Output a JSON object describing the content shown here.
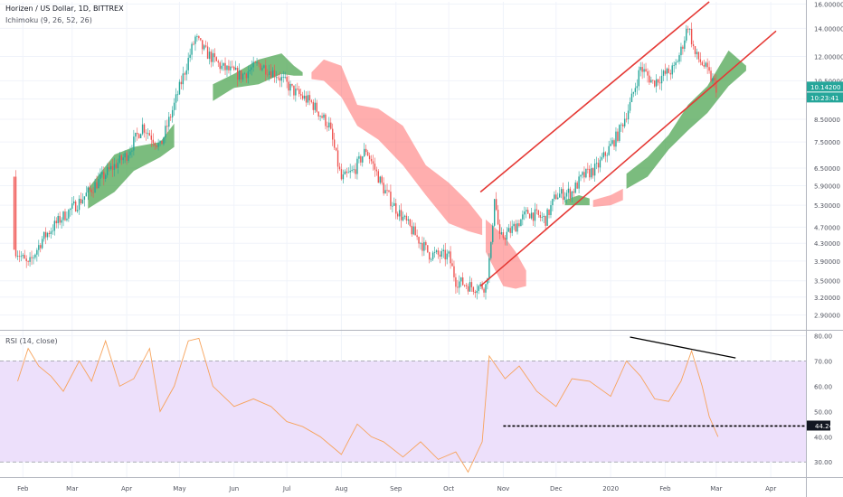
{
  "header": {
    "symbol_line": "Horizen / US Dollar, 1D, BITTREX",
    "indicator_line": "Ichimoku (9, 26, 52, 26)",
    "rsi_line": "RSI (14, close)"
  },
  "colors": {
    "candle_up": "#26a69a",
    "candle_down": "#ef5350",
    "cloud_bull": "#43a047",
    "cloud_bear": "#ff6b6b",
    "trend_channel": "#e53935",
    "rsi_line": "#f7a35c",
    "rsi_band": "#ede0fb",
    "grid": "#f0f3fa",
    "price_badge": "#26a69a",
    "rsi_badge": "#131722"
  },
  "chart_data": [
    {
      "type": "candlestick",
      "title": "Horizen / US Dollar, 1D, BITTREX",
      "y_scale": "log",
      "ylim": [
        2.7,
        16.2
      ],
      "y_ticks": [
        "16.00000",
        "14.00000",
        "12.00000",
        "10.50000",
        "9.50000",
        "8.50000",
        "7.50000",
        "6.50000",
        "5.90000",
        "5.30000",
        "4.70000",
        "4.30000",
        "3.90000",
        "3.50000",
        "3.20000",
        "2.90000"
      ],
      "current_price": "10.14200",
      "countdown": "10:23:41",
      "x_ticks": [
        "Feb",
        "Mar",
        "Apr",
        "May",
        "Jun",
        "Jul",
        "Aug",
        "Sep",
        "Oct",
        "Nov",
        "Dec",
        "2020",
        "Feb",
        "Mar",
        "Apr"
      ],
      "x_tick_dates": [
        "2019-02-01",
        "2019-03-01",
        "2019-04-01",
        "2019-05-01",
        "2019-06-01",
        "2019-07-01",
        "2019-08-01",
        "2019-09-01",
        "2019-10-01",
        "2019-11-01",
        "2019-12-01",
        "2020-01-01",
        "2020-02-01",
        "2020-03-01",
        "2020-04-01"
      ],
      "price_path": [
        [
          "2019-01-27",
          6.2
        ],
        [
          "2019-01-28",
          4.15
        ],
        [
          "2019-02-04",
          3.8
        ],
        [
          "2019-02-12",
          4.4
        ],
        [
          "2019-02-22",
          4.9
        ],
        [
          "2019-03-05",
          5.4
        ],
        [
          "2019-03-20",
          6.3
        ],
        [
          "2019-04-01",
          7.0
        ],
        [
          "2019-04-10",
          8.2
        ],
        [
          "2019-04-20",
          7.3
        ],
        [
          "2019-04-28",
          9.2
        ],
        [
          "2019-05-06",
          11.8
        ],
        [
          "2019-05-10",
          13.3
        ],
        [
          "2019-05-15",
          12.4
        ],
        [
          "2019-05-25",
          11.3
        ],
        [
          "2019-06-05",
          10.8
        ],
        [
          "2019-06-15",
          11.5
        ],
        [
          "2019-06-25",
          10.9
        ],
        [
          "2019-07-05",
          9.9
        ],
        [
          "2019-07-15",
          9.3
        ],
        [
          "2019-07-25",
          8.2
        ],
        [
          "2019-08-01",
          6.1
        ],
        [
          "2019-08-08",
          6.4
        ],
        [
          "2019-08-15",
          7.2
        ],
        [
          "2019-08-25",
          5.8
        ],
        [
          "2019-09-01",
          5.2
        ],
        [
          "2019-09-12",
          4.5
        ],
        [
          "2019-09-20",
          4.05
        ],
        [
          "2019-10-01",
          4.0
        ],
        [
          "2019-10-05",
          3.5
        ],
        [
          "2019-10-15",
          3.38
        ],
        [
          "2019-10-22",
          3.4
        ],
        [
          "2019-10-25",
          4.2
        ],
        [
          "2019-10-27",
          5.6
        ],
        [
          "2019-10-30",
          4.4
        ],
        [
          "2019-11-05",
          4.6
        ],
        [
          "2019-11-15",
          5.1
        ],
        [
          "2019-11-25",
          4.9
        ],
        [
          "2019-12-01",
          5.6
        ],
        [
          "2019-12-10",
          5.7
        ],
        [
          "2019-12-16",
          6.2
        ],
        [
          "2019-12-24",
          6.5
        ],
        [
          "2020-01-05",
          7.8
        ],
        [
          "2020-01-12",
          9.2
        ],
        [
          "2020-01-18",
          11.3
        ],
        [
          "2020-01-25",
          10.4
        ],
        [
          "2020-02-01",
          10.9
        ],
        [
          "2020-02-06",
          11.2
        ],
        [
          "2020-02-10",
          12.4
        ],
        [
          "2020-02-14",
          14.3
        ],
        [
          "2020-02-18",
          12.1
        ],
        [
          "2020-02-23",
          11.4
        ],
        [
          "2020-03-01",
          10.14
        ]
      ],
      "channel_upper": [
        [
          "2019-10-19",
          5.7
        ],
        [
          "2020-02-26",
          16.2
        ]
      ],
      "channel_lower": [
        [
          "2019-10-19",
          3.4
        ],
        [
          "2020-04-04",
          13.8
        ]
      ],
      "cloud_segments": [
        {
          "kind": "bull",
          "dates": [
            "2019-03-10",
            "2019-03-25",
            "2019-04-05",
            "2019-04-20",
            "2019-04-28"
          ],
          "upper": [
            5.8,
            7.0,
            7.3,
            7.5,
            8.3
          ],
          "lower": [
            5.2,
            5.7,
            6.4,
            6.9,
            7.3
          ]
        },
        {
          "kind": "bull",
          "dates": [
            "2019-05-20",
            "2019-06-01",
            "2019-06-15",
            "2019-06-28",
            "2019-07-05",
            "2019-07-10"
          ],
          "upper": [
            10.3,
            10.9,
            11.8,
            12.2,
            11.4,
            11.0
          ],
          "lower": [
            9.4,
            10.1,
            10.3,
            10.9,
            10.8,
            10.8
          ]
        },
        {
          "kind": "bear",
          "dates": [
            "2019-07-15",
            "2019-07-22",
            "2019-08-01",
            "2019-08-10",
            "2019-08-22",
            "2019-09-05",
            "2019-09-18",
            "2019-10-01",
            "2019-10-12",
            "2019-10-20"
          ],
          "upper": [
            11.0,
            11.8,
            11.4,
            9.2,
            9.0,
            8.2,
            6.6,
            6.0,
            5.4,
            4.9
          ],
          "lower": [
            10.6,
            10.5,
            9.6,
            8.2,
            7.6,
            6.6,
            5.6,
            4.8,
            4.6,
            4.5
          ]
        },
        {
          "kind": "bear",
          "dates": [
            "2019-10-22",
            "2019-11-01",
            "2019-11-08",
            "2019-11-14"
          ],
          "upper": [
            4.9,
            4.5,
            4.1,
            3.7
          ],
          "lower": [
            4.1,
            3.4,
            3.35,
            3.4
          ]
        },
        {
          "kind": "bull",
          "dates": [
            "2019-12-06",
            "2019-12-14",
            "2019-12-20"
          ],
          "upper": [
            5.45,
            5.6,
            5.5
          ],
          "lower": [
            5.3,
            5.3,
            5.3
          ]
        },
        {
          "kind": "bear",
          "dates": [
            "2019-12-22",
            "2020-01-01",
            "2020-01-08"
          ],
          "upper": [
            5.45,
            5.6,
            5.8
          ],
          "lower": [
            5.25,
            5.3,
            5.45
          ]
        },
        {
          "kind": "bull",
          "dates": [
            "2020-01-10",
            "2020-01-22",
            "2020-02-03",
            "2020-02-14",
            "2020-02-25",
            "2020-03-08",
            "2020-03-18"
          ],
          "upper": [
            6.3,
            6.9,
            7.8,
            9.2,
            10.2,
            12.4,
            11.4
          ],
          "lower": [
            5.8,
            6.2,
            7.2,
            8.0,
            8.8,
            10.2,
            11.1
          ]
        }
      ]
    },
    {
      "type": "line",
      "title": "RSI (14, close)",
      "ylim": [
        24,
        82
      ],
      "y_ticks": [
        "80.00",
        "70.00",
        "60.00",
        "50.00",
        "40.00",
        "30.00"
      ],
      "band": [
        30,
        70
      ],
      "current_value": "44.24",
      "support_level": 44.24,
      "support_line": [
        [
          "2019-11-01",
          44.24
        ],
        [
          "2020-04-30",
          44.24
        ]
      ],
      "divergence_line": [
        [
          "2020-01-12",
          79.5
        ],
        [
          "2020-03-12",
          71.2
        ]
      ],
      "series": [
        {
          "points": [
            [
              "2019-01-29",
              62
            ],
            [
              "2019-02-04",
              75
            ],
            [
              "2019-02-10",
              68
            ],
            [
              "2019-02-17",
              64
            ],
            [
              "2019-02-24",
              58
            ],
            [
              "2019-03-05",
              70
            ],
            [
              "2019-03-12",
              62
            ],
            [
              "2019-03-20",
              78
            ],
            [
              "2019-03-28",
              60
            ],
            [
              "2019-04-05",
              63
            ],
            [
              "2019-04-14",
              75
            ],
            [
              "2019-04-20",
              50
            ],
            [
              "2019-04-28",
              60
            ],
            [
              "2019-05-06",
              78
            ],
            [
              "2019-05-12",
              79
            ],
            [
              "2019-05-20",
              60
            ],
            [
              "2019-06-01",
              52
            ],
            [
              "2019-06-12",
              55
            ],
            [
              "2019-06-22",
              52
            ],
            [
              "2019-07-01",
              46
            ],
            [
              "2019-07-10",
              44
            ],
            [
              "2019-07-20",
              40
            ],
            [
              "2019-08-01",
              33
            ],
            [
              "2019-08-10",
              45
            ],
            [
              "2019-08-18",
              40
            ],
            [
              "2019-08-25",
              38
            ],
            [
              "2019-09-05",
              32
            ],
            [
              "2019-09-15",
              38
            ],
            [
              "2019-09-25",
              31
            ],
            [
              "2019-10-05",
              34
            ],
            [
              "2019-10-12",
              26
            ],
            [
              "2019-10-20",
              38
            ],
            [
              "2019-10-24",
              72
            ],
            [
              "2019-11-02",
              63
            ],
            [
              "2019-11-10",
              68
            ],
            [
              "2019-11-20",
              58
            ],
            [
              "2019-12-01",
              52
            ],
            [
              "2019-12-10",
              63
            ],
            [
              "2019-12-20",
              62
            ],
            [
              "2020-01-01",
              56
            ],
            [
              "2020-01-10",
              70
            ],
            [
              "2020-01-18",
              64
            ],
            [
              "2020-01-26",
              55
            ],
            [
              "2020-02-03",
              54
            ],
            [
              "2020-02-10",
              62
            ],
            [
              "2020-02-16",
              74
            ],
            [
              "2020-02-22",
              60
            ],
            [
              "2020-02-26",
              48
            ],
            [
              "2020-03-02",
              40
            ]
          ]
        }
      ]
    }
  ]
}
